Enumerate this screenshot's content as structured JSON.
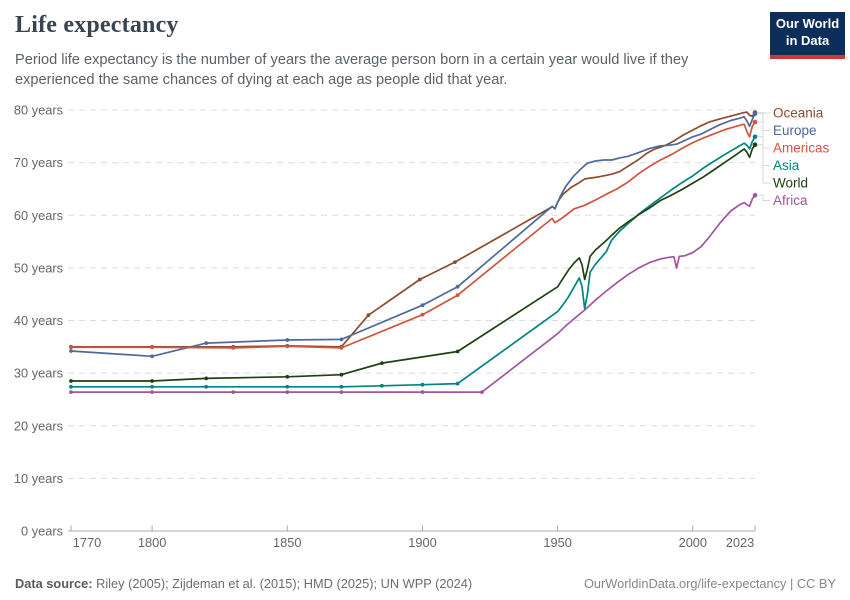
{
  "header": {
    "title": "Life expectancy",
    "subtitle": "Period life expectancy is the number of years the average person born in a certain year would live if they experienced the same chances of dying at each age as people did that year."
  },
  "logo": {
    "line1": "Our World",
    "line2": "in Data",
    "bg_color": "#0d2e5b",
    "accent_color": "#d8352a"
  },
  "chart_data": {
    "type": "line",
    "title": "Life expectancy",
    "xlabel": "",
    "ylabel": "",
    "xlim": [
      1770,
      2023
    ],
    "ylim": [
      0,
      80
    ],
    "x_ticks": [
      1770,
      1800,
      1850,
      1900,
      1950,
      2000,
      2023
    ],
    "y_ticks": [
      0,
      10,
      20,
      30,
      40,
      50,
      60,
      70,
      80
    ],
    "y_tick_suffix": " years",
    "grid": "horizontal-dashed",
    "legend_position": "right",
    "colors": {
      "grid": "#dddddd",
      "axis": "#a9a9a9",
      "tick_text": "#666666",
      "connector": "#d9d9d9"
    },
    "series": [
      {
        "name": "Oceania",
        "color": "#8c4c2d",
        "points": [
          [
            1770,
            35.0
          ],
          [
            1800,
            35.0
          ],
          [
            1830,
            35.0
          ],
          [
            1850,
            35.2
          ],
          [
            1870,
            35.0
          ],
          [
            1880,
            41.0
          ],
          [
            1899,
            47.8
          ],
          [
            1912,
            51.1
          ],
          [
            1948,
            61.6
          ],
          [
            1949,
            61.3
          ],
          [
            1950,
            62.5
          ],
          [
            1952,
            64.0
          ],
          [
            1955,
            65.3
          ],
          [
            1958,
            66.2
          ],
          [
            1960,
            66.9
          ],
          [
            1964,
            67.2
          ],
          [
            1968,
            67.6
          ],
          [
            1970,
            67.8
          ],
          [
            1973,
            68.3
          ],
          [
            1976,
            69.3
          ],
          [
            1980,
            70.6
          ],
          [
            1983,
            71.8
          ],
          [
            1986,
            72.6
          ],
          [
            1990,
            73.3
          ],
          [
            1993,
            74.1
          ],
          [
            1996,
            75.1
          ],
          [
            2000,
            76.2
          ],
          [
            2003,
            77.0
          ],
          [
            2006,
            77.7
          ],
          [
            2010,
            78.3
          ],
          [
            2013,
            78.7
          ],
          [
            2016,
            79.1
          ],
          [
            2019,
            79.5
          ],
          [
            2020,
            79.6
          ],
          [
            2021,
            79.0
          ],
          [
            2022,
            78.8
          ],
          [
            2023,
            79.5
          ]
        ]
      },
      {
        "name": "Europe",
        "color": "#4c6a9c",
        "points": [
          [
            1770,
            34.2
          ],
          [
            1800,
            33.2
          ],
          [
            1820,
            35.7
          ],
          [
            1850,
            36.3
          ],
          [
            1870,
            36.4
          ],
          [
            1900,
            42.9
          ],
          [
            1913,
            46.4
          ],
          [
            1948,
            61.7
          ],
          [
            1949,
            61.2
          ],
          [
            1950,
            62.4
          ],
          [
            1951,
            63.6
          ],
          [
            1953,
            65.5
          ],
          [
            1956,
            67.5
          ],
          [
            1959,
            69.0
          ],
          [
            1961,
            69.9
          ],
          [
            1964,
            70.3
          ],
          [
            1967,
            70.5
          ],
          [
            1970,
            70.5
          ],
          [
            1973,
            70.9
          ],
          [
            1976,
            71.2
          ],
          [
            1980,
            71.9
          ],
          [
            1984,
            72.7
          ],
          [
            1988,
            73.2
          ],
          [
            1991,
            73.3
          ],
          [
            1994,
            73.5
          ],
          [
            1997,
            74.2
          ],
          [
            2000,
            74.9
          ],
          [
            2003,
            75.4
          ],
          [
            2006,
            76.2
          ],
          [
            2010,
            77.2
          ],
          [
            2014,
            78.0
          ],
          [
            2017,
            78.4
          ],
          [
            2019,
            78.7
          ],
          [
            2020,
            77.9
          ],
          [
            2021,
            76.9
          ],
          [
            2022,
            78.2
          ],
          [
            2023,
            79.3
          ]
        ]
      },
      {
        "name": "Americas",
        "color": "#d1543e",
        "points": [
          [
            1770,
            34.9
          ],
          [
            1800,
            34.9
          ],
          [
            1830,
            34.8
          ],
          [
            1850,
            35.1
          ],
          [
            1870,
            34.8
          ],
          [
            1900,
            41.1
          ],
          [
            1913,
            44.8
          ],
          [
            1948,
            59.4
          ],
          [
            1949,
            58.6
          ],
          [
            1950,
            58.9
          ],
          [
            1952,
            59.6
          ],
          [
            1956,
            61.2
          ],
          [
            1960,
            61.9
          ],
          [
            1964,
            62.9
          ],
          [
            1968,
            64.0
          ],
          [
            1972,
            65.0
          ],
          [
            1976,
            66.3
          ],
          [
            1980,
            67.9
          ],
          [
            1984,
            69.3
          ],
          [
            1988,
            70.5
          ],
          [
            1992,
            71.5
          ],
          [
            1996,
            72.7
          ],
          [
            2000,
            73.8
          ],
          [
            2004,
            74.7
          ],
          [
            2008,
            75.5
          ],
          [
            2012,
            76.3
          ],
          [
            2016,
            76.9
          ],
          [
            2019,
            77.3
          ],
          [
            2020,
            75.9
          ],
          [
            2021,
            74.9
          ],
          [
            2022,
            76.9
          ],
          [
            2023,
            77.7
          ]
        ]
      },
      {
        "name": "Asia",
        "color": "#00847e",
        "points": [
          [
            1770,
            27.4
          ],
          [
            1800,
            27.4
          ],
          [
            1820,
            27.4
          ],
          [
            1850,
            27.4
          ],
          [
            1870,
            27.4
          ],
          [
            1885,
            27.6
          ],
          [
            1900,
            27.8
          ],
          [
            1913,
            28.0
          ],
          [
            1950,
            41.7
          ],
          [
            1952,
            43.0
          ],
          [
            1954,
            44.5
          ],
          [
            1956,
            46.3
          ],
          [
            1958,
            48.1
          ],
          [
            1959,
            46.5
          ],
          [
            1960,
            42.2
          ],
          [
            1961,
            45.0
          ],
          [
            1962,
            49.2
          ],
          [
            1964,
            50.7
          ],
          [
            1966,
            51.9
          ],
          [
            1968,
            53.1
          ],
          [
            1970,
            55.3
          ],
          [
            1973,
            57.0
          ],
          [
            1976,
            58.4
          ],
          [
            1980,
            60.2
          ],
          [
            1984,
            61.8
          ],
          [
            1988,
            63.3
          ],
          [
            1992,
            64.8
          ],
          [
            1996,
            66.2
          ],
          [
            2000,
            67.5
          ],
          [
            2004,
            69.0
          ],
          [
            2008,
            70.3
          ],
          [
            2012,
            71.6
          ],
          [
            2016,
            72.8
          ],
          [
            2019,
            73.7
          ],
          [
            2020,
            73.3
          ],
          [
            2021,
            72.6
          ],
          [
            2022,
            74.0
          ],
          [
            2023,
            74.9
          ]
        ]
      },
      {
        "name": "World",
        "color": "#1d4110",
        "points": [
          [
            1770,
            28.5
          ],
          [
            1800,
            28.5
          ],
          [
            1820,
            29.0
          ],
          [
            1850,
            29.3
          ],
          [
            1870,
            29.7
          ],
          [
            1885,
            31.9
          ],
          [
            1913,
            34.1
          ],
          [
            1950,
            46.4
          ],
          [
            1952,
            48.0
          ],
          [
            1954,
            49.6
          ],
          [
            1956,
            50.9
          ],
          [
            1958,
            51.9
          ],
          [
            1959,
            50.6
          ],
          [
            1960,
            47.8
          ],
          [
            1961,
            49.8
          ],
          [
            1962,
            52.2
          ],
          [
            1964,
            53.4
          ],
          [
            1966,
            54.3
          ],
          [
            1968,
            55.2
          ],
          [
            1970,
            56.2
          ],
          [
            1973,
            57.6
          ],
          [
            1976,
            58.7
          ],
          [
            1980,
            60.1
          ],
          [
            1984,
            61.4
          ],
          [
            1988,
            62.8
          ],
          [
            1992,
            63.8
          ],
          [
            1996,
            64.9
          ],
          [
            2000,
            66.1
          ],
          [
            2004,
            67.3
          ],
          [
            2008,
            68.7
          ],
          [
            2012,
            70.1
          ],
          [
            2016,
            71.5
          ],
          [
            2019,
            72.6
          ],
          [
            2020,
            72.0
          ],
          [
            2021,
            71.0
          ],
          [
            2022,
            72.6
          ],
          [
            2023,
            73.4
          ]
        ]
      },
      {
        "name": "Africa",
        "color": "#a2559c",
        "points": [
          [
            1770,
            26.4
          ],
          [
            1800,
            26.4
          ],
          [
            1830,
            26.4
          ],
          [
            1850,
            26.4
          ],
          [
            1870,
            26.4
          ],
          [
            1900,
            26.4
          ],
          [
            1922,
            26.4
          ],
          [
            1950,
            37.5
          ],
          [
            1953,
            39.0
          ],
          [
            1956,
            40.3
          ],
          [
            1960,
            42.0
          ],
          [
            1964,
            43.9
          ],
          [
            1968,
            45.6
          ],
          [
            1972,
            47.2
          ],
          [
            1976,
            48.7
          ],
          [
            1980,
            50.0
          ],
          [
            1984,
            51.0
          ],
          [
            1988,
            51.7
          ],
          [
            1991,
            52.0
          ],
          [
            1993,
            52.1
          ],
          [
            1994,
            50.0
          ],
          [
            1995,
            52.2
          ],
          [
            1997,
            52.3
          ],
          [
            2000,
            52.9
          ],
          [
            2003,
            54.0
          ],
          [
            2006,
            55.8
          ],
          [
            2010,
            58.5
          ],
          [
            2014,
            60.8
          ],
          [
            2017,
            61.9
          ],
          [
            2019,
            62.4
          ],
          [
            2020,
            62.0
          ],
          [
            2021,
            61.7
          ],
          [
            2022,
            63.1
          ],
          [
            2023,
            63.8
          ]
        ]
      }
    ]
  },
  "footer": {
    "source_label": "Data source:",
    "sources": " Riley (2005); Zijdeman et al. (2015); HMD (2025); UN WPP (2024)",
    "link": "OurWorldinData.org/life-expectancy",
    "separator": " | ",
    "license": "CC BY"
  }
}
